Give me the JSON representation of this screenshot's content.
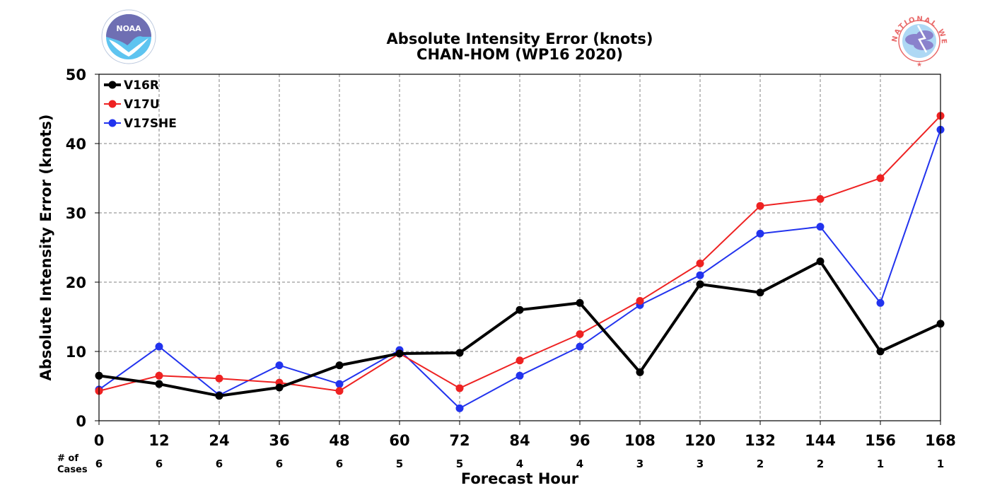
{
  "chart_data": {
    "type": "line",
    "title": "Absolute Intensity Error (knots)",
    "subtitle": "CHAN-HOM (WP16 2020)",
    "xlabel": "Forecast Hour",
    "ylabel": "Absolute Intensity Error (knots)",
    "x": [
      0,
      12,
      24,
      36,
      48,
      60,
      72,
      84,
      96,
      108,
      120,
      132,
      144,
      156,
      168
    ],
    "xlim": [
      0,
      168
    ],
    "ylim": [
      0,
      50
    ],
    "yticks": [
      0,
      10,
      20,
      30,
      40,
      50
    ],
    "grid": true,
    "legend_position": "top-left",
    "series": [
      {
        "name": "V16R",
        "color": "#000000",
        "values": [
          6.5,
          5.3,
          3.6,
          4.8,
          8.0,
          9.7,
          9.8,
          16.0,
          17.0,
          7.0,
          19.7,
          18.5,
          23.0,
          10.0,
          14.0
        ]
      },
      {
        "name": "V17U",
        "color": "#ee2222",
        "values": [
          4.3,
          6.5,
          6.1,
          5.5,
          4.3,
          9.7,
          4.7,
          8.7,
          12.5,
          17.3,
          22.7,
          31.0,
          32.0,
          35.0,
          44.0
        ]
      },
      {
        "name": "V17SHE",
        "color": "#2233ee",
        "values": [
          4.5,
          10.7,
          3.7,
          8.0,
          5.3,
          10.2,
          1.8,
          6.5,
          10.7,
          16.7,
          21.0,
          27.0,
          28.0,
          17.0,
          42.0
        ]
      }
    ],
    "cases_label": [
      "# of",
      "Cases"
    ],
    "cases": [
      6,
      6,
      6,
      6,
      6,
      5,
      5,
      4,
      4,
      3,
      3,
      2,
      2,
      1,
      1
    ]
  },
  "logos": {
    "noaa": {
      "text": "NOAA",
      "colors": {
        "dark": "#6f6fb3",
        "light": "#5ec4f0"
      }
    },
    "nws": {
      "ring_text": "NATIONAL WEATHER SERVICE",
      "ring_color": "#e96a6a"
    }
  }
}
